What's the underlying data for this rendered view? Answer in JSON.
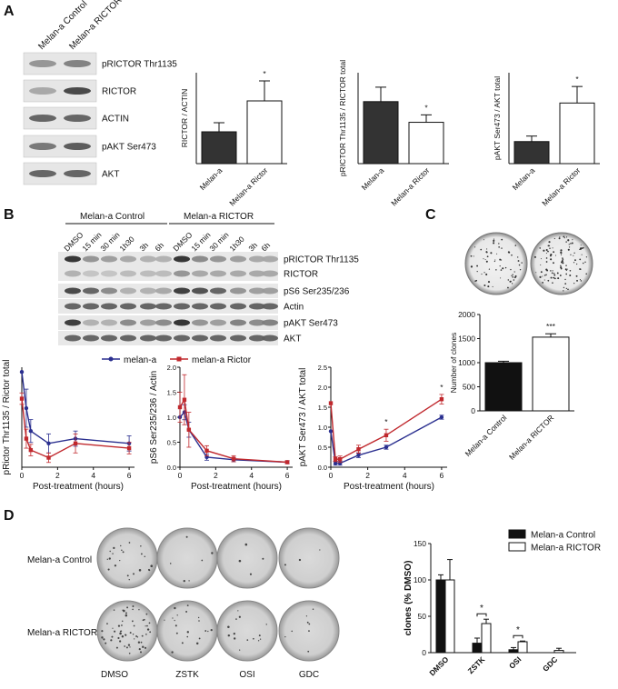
{
  "panels": {
    "a": {
      "label": "A",
      "lanes": [
        "Melan-a Control",
        "Melan-a RICTOR"
      ],
      "blots": [
        "pRICTOR Thr1135",
        "RICTOR",
        "ACTIN",
        "pAKT Ser473",
        "AKT"
      ]
    },
    "b": {
      "label": "B",
      "group_control": "Melan-a Control",
      "group_rictor": "Melan-a RICTOR",
      "lanes": [
        "DMSO",
        "15 min",
        "30 min",
        "1h30",
        "3h",
        "6h",
        "DMSO",
        "15 min",
        "30 min",
        "1h30",
        "3h",
        "6h"
      ],
      "blots": [
        "pRICTOR Thr1135",
        "RICTOR",
        "pS6 Ser235/236",
        "Actin",
        "pAKT Ser473",
        "AKT"
      ],
      "legend": [
        "melan-a",
        "melan-a Rictor"
      ]
    },
    "c": {
      "label": "C"
    },
    "d": {
      "label": "D",
      "rows": [
        "Melan-a Control",
        "Melan-a RICTOR"
      ],
      "cols": [
        "DMSO",
        "ZSTK",
        "OSI",
        "GDC"
      ]
    }
  },
  "colors": {
    "series_blue": "#2a2f8f",
    "series_red": "#c0282d",
    "bar_dark": "#333333"
  },
  "chart_data": [
    {
      "id": "a1",
      "type": "bar",
      "categories": [
        "Melan-a",
        "Melan-a Rictor"
      ],
      "values": [
        1.75,
        3.45
      ],
      "errors": [
        0.5,
        1.1
      ],
      "fills": [
        "#333333",
        "#ffffff"
      ],
      "ylabel": "RICTOR / ACTIN",
      "ylim": [
        0,
        5
      ],
      "sig": [
        "",
        "*"
      ]
    },
    {
      "id": "a2",
      "type": "bar",
      "categories": [
        "Melan-a",
        "Melan-a Rictor"
      ],
      "values": [
        1.5,
        1.0
      ],
      "errors": [
        0.35,
        0.18
      ],
      "fills": [
        "#333333",
        "#ffffff"
      ],
      "ylabel": "pRICTOR Thr1135 / RICTOR total",
      "ylim": [
        0,
        2.2
      ],
      "sig": [
        "",
        "*"
      ]
    },
    {
      "id": "a3",
      "type": "bar",
      "categories": [
        "Melan-a",
        "Melan-a Rictor"
      ],
      "values": [
        0.8,
        2.2
      ],
      "errors": [
        0.2,
        0.6
      ],
      "fills": [
        "#333333",
        "#ffffff"
      ],
      "ylabel": "pAKT Ser473 / AKT total",
      "ylim": [
        0,
        3.3
      ],
      "sig": [
        "",
        "*"
      ]
    },
    {
      "id": "b1",
      "type": "line",
      "xlabel": "Post-treatment (hours)",
      "ylabel": "pRictor Thr1135 / Rictor total",
      "xlim": [
        0,
        6.3
      ],
      "ylim": [
        0,
        1.05
      ],
      "xticks": [
        "0",
        "2",
        "4",
        "6"
      ],
      "series": [
        {
          "name": "melan-a",
          "x": [
            0,
            0.25,
            0.5,
            1.5,
            3,
            6
          ],
          "y": [
            1.0,
            0.62,
            0.38,
            0.25,
            0.3,
            0.25
          ],
          "err": [
            0,
            0.2,
            0.12,
            0.1,
            0.08,
            0.08
          ]
        },
        {
          "name": "melan-a Rictor",
          "x": [
            0,
            0.25,
            0.5,
            1.5,
            3,
            6
          ],
          "y": [
            0.72,
            0.3,
            0.18,
            0.1,
            0.25,
            0.2
          ],
          "err": [
            0.06,
            0.1,
            0.06,
            0.05,
            0.1,
            0.06
          ]
        }
      ]
    },
    {
      "id": "b2",
      "type": "line",
      "xlabel": "Post-treatment (hours)",
      "ylabel": "pS6 Ser235/236 / Actin",
      "xlim": [
        0,
        6.3
      ],
      "ylim": [
        0,
        2.0
      ],
      "xticks": [
        "0",
        "2",
        "4",
        "6"
      ],
      "yticks": [
        "0.0",
        "0.5",
        "1.0",
        "1.5",
        "2.0"
      ],
      "series": [
        {
          "name": "melan-a",
          "x": [
            0,
            0.25,
            0.5,
            1.5,
            3,
            6
          ],
          "y": [
            1.0,
            1.1,
            0.75,
            0.2,
            0.15,
            0.1
          ],
          "err": [
            0,
            0.15,
            0.15,
            0.06,
            0.04,
            0.03
          ]
        },
        {
          "name": "melan-a Rictor",
          "x": [
            0,
            0.25,
            0.5,
            1.5,
            3,
            6
          ],
          "y": [
            1.2,
            1.35,
            0.75,
            0.33,
            0.17,
            0.1
          ],
          "err": [
            0.3,
            0.5,
            0.35,
            0.1,
            0.06,
            0.03
          ]
        }
      ]
    },
    {
      "id": "b3",
      "type": "line",
      "xlabel": "Post-treatment (hours)",
      "ylabel": "pAKT Ser473 / AKT total",
      "xlim": [
        0,
        6.3
      ],
      "ylim": [
        0,
        2.5
      ],
      "xticks": [
        "0",
        "2",
        "4",
        "6"
      ],
      "yticks": [
        "0.0",
        "0.5",
        "1.0",
        "1.5",
        "2.0",
        "2.5"
      ],
      "sig_labels": [
        "*",
        "*"
      ],
      "series": [
        {
          "name": "melan-a",
          "x": [
            0,
            0.25,
            0.5,
            1.5,
            3,
            6
          ],
          "y": [
            0.9,
            0.1,
            0.1,
            0.3,
            0.5,
            1.25
          ],
          "err": [
            0,
            0.05,
            0.05,
            0.06,
            0.05,
            0.05
          ]
        },
        {
          "name": "melan-a Rictor",
          "x": [
            0,
            0.25,
            0.5,
            1.5,
            3,
            6
          ],
          "y": [
            1.6,
            0.2,
            0.2,
            0.45,
            0.8,
            1.7
          ],
          "err": [
            0,
            0.06,
            0.08,
            0.1,
            0.15,
            0.12
          ]
        }
      ]
    },
    {
      "id": "c",
      "type": "bar",
      "categories": [
        "Melan-a Control",
        "Melan-a RICTOR"
      ],
      "values": [
        1000,
        1530
      ],
      "errors": [
        30,
        70
      ],
      "fills": [
        "#111111",
        "#ffffff"
      ],
      "ylabel": "Number of clones",
      "ylim": [
        0,
        2000
      ],
      "yticks": [
        "0",
        "500",
        "1000",
        "1500",
        "2000"
      ],
      "sig": [
        "",
        "***"
      ]
    },
    {
      "id": "d",
      "type": "bar",
      "categories": [
        "DMSO",
        "ZSTK",
        "OSI",
        "GDC"
      ],
      "ylabel": "clones (% DMSO)",
      "ylim": [
        0,
        150
      ],
      "yticks": [
        "0",
        "50",
        "100",
        "150"
      ],
      "series": [
        {
          "name": "Melan-a Control",
          "values": [
            100,
            13,
            4,
            0
          ],
          "errors": [
            7,
            7,
            3,
            0
          ],
          "fill": "#111111"
        },
        {
          "name": "Melan-a RICTOR",
          "values": [
            100,
            40,
            15,
            3
          ],
          "errors": [
            28,
            6,
            1,
            3
          ],
          "fill": "#ffffff"
        }
      ],
      "sig": [
        "",
        "*",
        "*",
        ""
      ]
    }
  ]
}
